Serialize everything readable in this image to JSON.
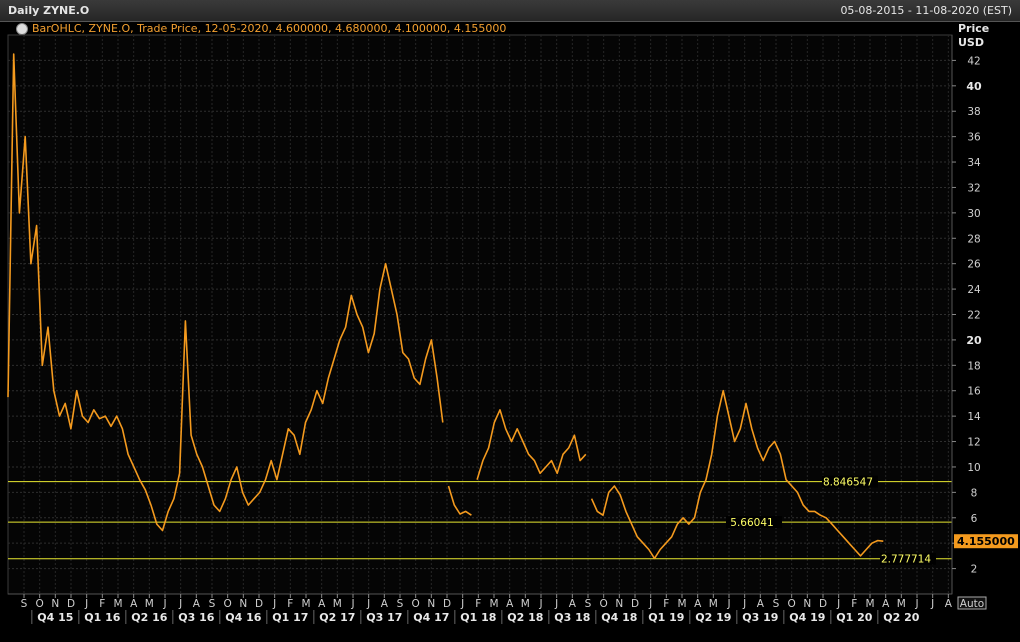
{
  "window": {
    "title": "Daily ZYNE.O",
    "date_range": "05-08-2015 - 11-08-2020 (EST)"
  },
  "legend": {
    "text": "BarOHLC, ZYNE.O, Trade Price,  12-05-2020, 4.600000, 4.680000, 4.100000, 4.155000"
  },
  "chart_data": {
    "type": "line",
    "title": "Daily ZYNE.O",
    "ylabel": "Price USD",
    "ylabel_line1": "Price",
    "ylabel_line2": "USD",
    "ylim": [
      0,
      44
    ],
    "yticks": [
      2,
      4,
      6,
      8,
      10,
      12,
      14,
      16,
      18,
      20,
      22,
      24,
      26,
      28,
      30,
      32,
      34,
      36,
      38,
      40,
      42
    ],
    "ybold": [
      20,
      40
    ],
    "grid": true,
    "line_color": "#f49a1e",
    "month_labels": [
      "S",
      "O",
      "N",
      "D",
      "J",
      "F",
      "M",
      "A",
      "M",
      "J",
      "J",
      "A",
      "S",
      "O",
      "N",
      "D",
      "J",
      "F",
      "M",
      "A",
      "M",
      "J",
      "J",
      "A",
      "S",
      "O",
      "N",
      "D",
      "J",
      "F",
      "M",
      "A",
      "M",
      "J",
      "J",
      "A",
      "S",
      "O",
      "N",
      "D",
      "J",
      "F",
      "M",
      "A",
      "M",
      "J",
      "J",
      "A",
      "S",
      "O",
      "N",
      "D",
      "J",
      "F",
      "M",
      "A",
      "M",
      "J",
      "J",
      "A"
    ],
    "quarter_labels": [
      "Q4 15",
      "Q1 16",
      "Q2 16",
      "Q3 16",
      "Q4 16",
      "Q1 17",
      "Q2 17",
      "Q3 17",
      "Q4 17",
      "Q1 18",
      "Q2 18",
      "Q3 18",
      "Q4 18",
      "Q1 19",
      "Q2 19",
      "Q3 19",
      "Q4 19",
      "Q1 20",
      "Q2 20"
    ],
    "hlines": [
      {
        "value": 8.846547,
        "label": "8.846547"
      },
      {
        "value": 5.66041,
        "label": "5.66041"
      },
      {
        "value": 2.777714,
        "label": "2.777714"
      }
    ],
    "last_value": "4.155000",
    "auto_label": "Auto",
    "series": [
      {
        "points": [
          [
            0,
            15.5
          ],
          [
            1,
            42.5
          ],
          [
            2,
            30
          ],
          [
            3,
            36
          ],
          [
            4,
            26
          ],
          [
            5,
            29
          ],
          [
            6,
            18
          ],
          [
            7,
            21
          ],
          [
            8,
            16
          ],
          [
            9,
            14
          ],
          [
            10,
            15
          ],
          [
            11,
            13
          ],
          [
            12,
            16
          ],
          [
            13,
            14
          ],
          [
            14,
            13.5
          ],
          [
            15,
            14.5
          ],
          [
            16,
            13.8
          ],
          [
            17,
            14
          ],
          [
            18,
            13.2
          ],
          [
            19,
            14
          ],
          [
            20,
            13
          ],
          [
            21,
            11
          ],
          [
            22,
            10
          ],
          [
            23,
            9
          ],
          [
            24,
            8.2
          ],
          [
            25,
            7
          ],
          [
            26,
            5.5
          ],
          [
            27,
            5
          ],
          [
            28,
            6.5
          ],
          [
            29,
            7.5
          ],
          [
            30,
            9.5
          ],
          [
            31,
            21.5
          ],
          [
            32,
            12.5
          ],
          [
            33,
            11
          ],
          [
            34,
            10
          ],
          [
            35,
            8.5
          ],
          [
            36,
            7
          ],
          [
            37,
            6.5
          ],
          [
            38,
            7.5
          ],
          [
            39,
            9
          ],
          [
            40,
            10
          ],
          [
            41,
            8
          ],
          [
            42,
            7
          ],
          [
            43,
            7.5
          ],
          [
            44,
            8
          ],
          [
            45,
            9
          ],
          [
            46,
            10.5
          ],
          [
            47,
            9
          ],
          [
            48,
            11
          ],
          [
            49,
            13
          ],
          [
            50,
            12.5
          ],
          [
            51,
            11
          ],
          [
            52,
            13.5
          ],
          [
            53,
            14.5
          ],
          [
            54,
            16
          ],
          [
            55,
            15
          ],
          [
            56,
            17
          ],
          [
            57,
            18.5
          ],
          [
            58,
            20
          ],
          [
            59,
            21
          ],
          [
            60,
            23.5
          ],
          [
            61,
            22
          ],
          [
            62,
            21
          ],
          [
            63,
            19
          ],
          [
            64,
            20.5
          ],
          [
            65,
            24
          ],
          [
            66,
            26
          ],
          [
            67,
            24
          ],
          [
            68,
            22
          ],
          [
            69,
            19
          ],
          [
            70,
            18.5
          ],
          [
            71,
            17
          ],
          [
            72,
            16.5
          ],
          [
            73,
            18.5
          ],
          [
            74,
            20
          ],
          [
            75,
            17
          ],
          [
            76,
            13.5
          ],
          [
            76.01,
            null
          ],
          [
            77,
            8.5
          ],
          [
            78,
            7
          ],
          [
            79,
            6.3
          ],
          [
            80,
            6.5
          ],
          [
            81,
            6.2
          ],
          [
            81.01,
            null
          ],
          [
            82,
            9
          ],
          [
            83,
            10.5
          ],
          [
            84,
            11.5
          ],
          [
            85,
            13.5
          ],
          [
            86,
            14.5
          ],
          [
            87,
            13
          ],
          [
            88,
            12
          ],
          [
            89,
            13
          ],
          [
            90,
            12
          ],
          [
            91,
            11
          ],
          [
            92,
            10.5
          ],
          [
            93,
            9.5
          ],
          [
            94,
            10
          ],
          [
            95,
            10.5
          ],
          [
            96,
            9.5
          ],
          [
            97,
            11
          ],
          [
            98,
            11.5
          ],
          [
            99,
            12.5
          ],
          [
            100,
            10.5
          ],
          [
            101,
            11
          ],
          [
            101.01,
            null
          ],
          [
            102,
            7.5
          ],
          [
            103,
            6.5
          ],
          [
            104,
            6.2
          ],
          [
            105,
            8
          ],
          [
            106,
            8.5
          ],
          [
            107,
            7.8
          ],
          [
            108,
            6.5
          ],
          [
            109,
            5.5
          ],
          [
            110,
            4.5
          ],
          [
            111,
            4
          ],
          [
            112,
            3.5
          ],
          [
            113,
            2.8
          ],
          [
            114,
            3.5
          ],
          [
            115,
            4
          ],
          [
            116,
            4.5
          ],
          [
            117,
            5.5
          ],
          [
            118,
            6
          ],
          [
            119,
            5.5
          ],
          [
            120,
            6
          ],
          [
            121,
            8
          ],
          [
            122,
            9
          ],
          [
            123,
            11
          ],
          [
            124,
            14
          ],
          [
            125,
            16
          ],
          [
            126,
            14
          ],
          [
            127,
            12
          ],
          [
            128,
            13
          ],
          [
            129,
            15
          ],
          [
            130,
            13
          ],
          [
            131,
            11.5
          ],
          [
            132,
            10.5
          ],
          [
            133,
            11.5
          ],
          [
            134,
            12
          ],
          [
            135,
            11
          ],
          [
            136,
            9
          ],
          [
            137,
            8.5
          ],
          [
            138,
            8
          ],
          [
            139,
            7
          ],
          [
            140,
            6.5
          ],
          [
            141,
            6.5
          ],
          [
            142,
            6.2
          ],
          [
            143,
            6
          ],
          [
            144,
            5.5
          ],
          [
            145,
            5
          ],
          [
            146,
            4.5
          ],
          [
            147,
            4
          ],
          [
            148,
            3.5
          ],
          [
            149,
            3
          ],
          [
            150,
            3.5
          ],
          [
            151,
            4
          ],
          [
            152,
            4.2
          ],
          [
            153,
            4.155
          ]
        ]
      }
    ]
  }
}
